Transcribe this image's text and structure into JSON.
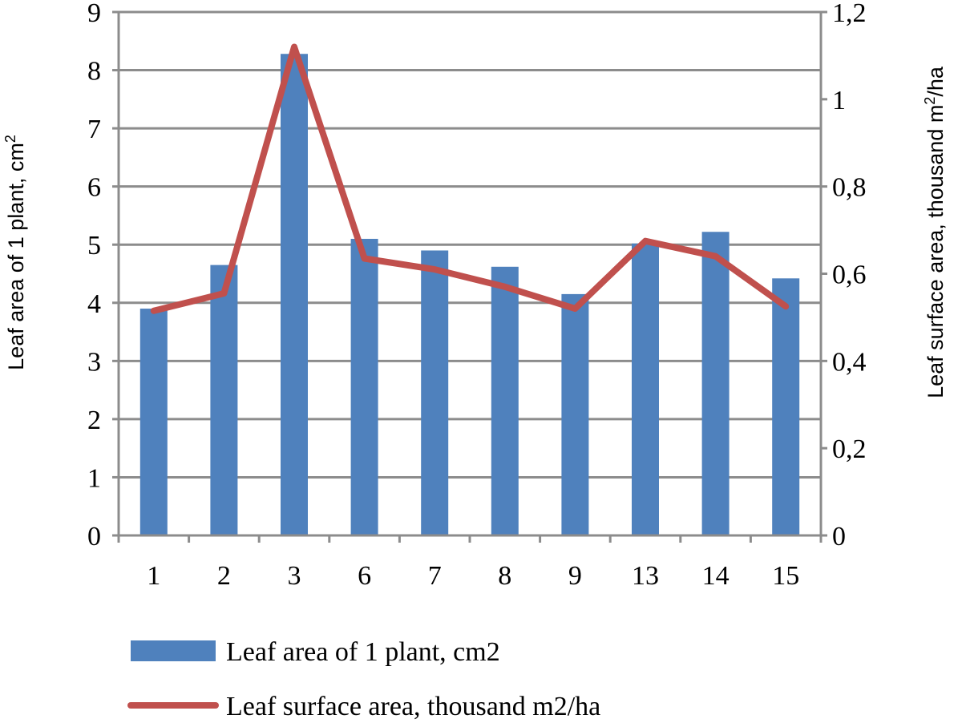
{
  "chart_data": {
    "type": "bar",
    "categories": [
      "1",
      "2",
      "3",
      "6",
      "7",
      "8",
      "9",
      "13",
      "14",
      "15"
    ],
    "series": [
      {
        "name": "Leaf area of 1 plant, cm2",
        "type": "bar",
        "axis": "left",
        "color": "#4f81bd",
        "values": [
          3.9,
          4.65,
          8.28,
          5.1,
          4.9,
          4.62,
          4.15,
          5.02,
          5.22,
          4.42
        ]
      },
      {
        "name": "Leaf surface area, thousand m2/ha",
        "type": "line",
        "axis": "right",
        "color": "#c0504d",
        "values": [
          0.515,
          0.555,
          1.12,
          0.635,
          0.61,
          0.57,
          0.52,
          0.675,
          0.64,
          0.525
        ]
      }
    ],
    "ylabel_left": "Leaf area of 1 plant, cm",
    "ylabel_left_sup": "2",
    "ylabel_right": "Leaf surface area, thousand m",
    "ylabel_right_sup": "2",
    "ylabel_right_suffix": "/ha",
    "ylim_left": [
      0,
      9
    ],
    "yticks_left": [
      "0",
      "1",
      "2",
      "3",
      "4",
      "5",
      "6",
      "7",
      "8",
      "9"
    ],
    "ylim_right": [
      0,
      1.2
    ],
    "yticks_right": [
      "0",
      "0,2",
      "0,4",
      "0,6",
      "0,8",
      "1",
      "1,2"
    ],
    "grid": true,
    "legend": "bottom"
  }
}
